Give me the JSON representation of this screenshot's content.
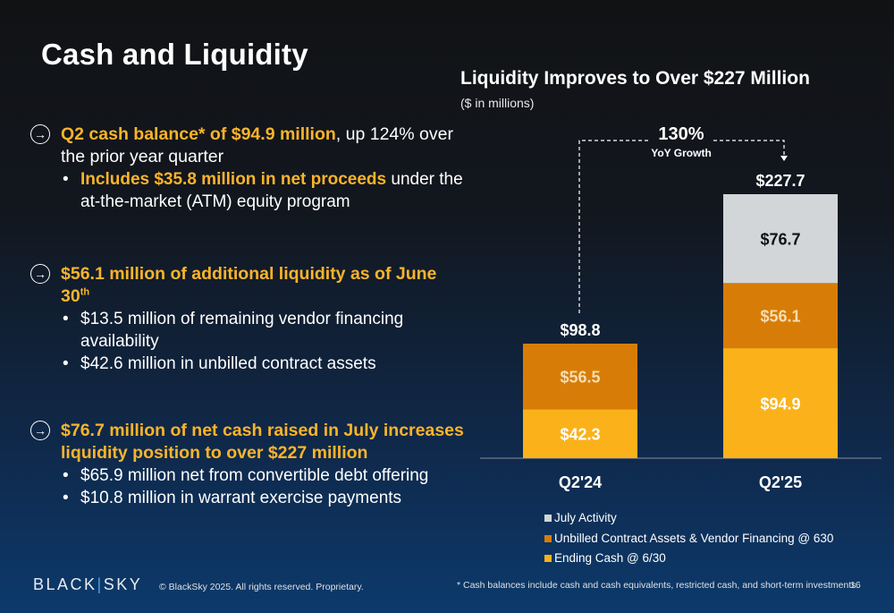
{
  "page": {
    "title": "Cash and Liquidity",
    "page_number": "16"
  },
  "bullets": [
    {
      "main": [
        {
          "text": "Q2 cash balance* of $94.9 million",
          "style": "hl"
        },
        {
          "text": ", up 124% over the prior year quarter",
          "style": "norm"
        }
      ],
      "subs": [
        [
          {
            "text": "Includes $35.8 million in net proceeds",
            "style": "hl"
          },
          {
            "text": " under the at-the-market (ATM) equity program",
            "style": "norm"
          }
        ]
      ]
    },
    {
      "main": [
        {
          "text": "$56.1 million of additional liquidity as of June 30",
          "style": "hl"
        },
        {
          "text": "th",
          "style": "hl-sup"
        }
      ],
      "subs": [
        [
          {
            "text": "$13.5 million of remaining vendor financing availability",
            "style": "norm"
          }
        ],
        [
          {
            "text": "$42.6 million in unbilled contract assets",
            "style": "norm"
          }
        ]
      ]
    },
    {
      "main": [
        {
          "text": "$76.7 million of net cash raised in July increases liquidity position to over $227 million",
          "style": "hl"
        }
      ],
      "subs": [
        [
          {
            "text": "$65.9 million net from convertible debt offering",
            "style": "norm"
          }
        ],
        [
          {
            "text": "$10.8 million in warrant exercise payments",
            "style": "norm"
          }
        ]
      ]
    }
  ],
  "chart_data": {
    "type": "bar",
    "stacked": true,
    "title": "Liquidity Improves to Over $227 Million",
    "subtitle": "($ in millions)",
    "categories": [
      "Q2'24",
      "Q2'25"
    ],
    "series": [
      {
        "name": "Ending Cash @ 6/30",
        "values": [
          42.3,
          94.9
        ],
        "color": "#fbb21a",
        "label_color": "#ffffff"
      },
      {
        "name": "Unbilled Contract Assets & Vendor Financing @ 630",
        "values": [
          56.5,
          56.1
        ],
        "color": "#d77d07",
        "label_color": "#f7dcb2"
      },
      {
        "name": "July Activity",
        "values": [
          0,
          76.7
        ],
        "color": "#d3d6d8",
        "label_color": "#111111"
      }
    ],
    "totals": [
      98.8,
      227.7
    ],
    "value_labels": [
      [
        "$42.3",
        "$94.9"
      ],
      [
        "$56.5",
        "$56.1"
      ],
      [
        null,
        "$76.7"
      ]
    ],
    "total_labels": [
      "$98.8",
      "$227.7"
    ],
    "annotation": {
      "value": "130%",
      "label": "YoY Growth"
    },
    "ylim": [
      0,
      227.7
    ],
    "legend_position": "bottom",
    "grid": false
  },
  "footer": {
    "logo_left": "BLACK",
    "logo_sep": "|",
    "logo_right": "SKY",
    "copyright": "© BlackSky 2025. All rights reserved. Proprietary.",
    "note": "* Cash balances include cash and cash equivalents, restricted cash, and short-term investments."
  },
  "colors": {
    "accent": "#fbb42a",
    "background_top": "#111214",
    "background_bottom": "#0c3a6c"
  }
}
